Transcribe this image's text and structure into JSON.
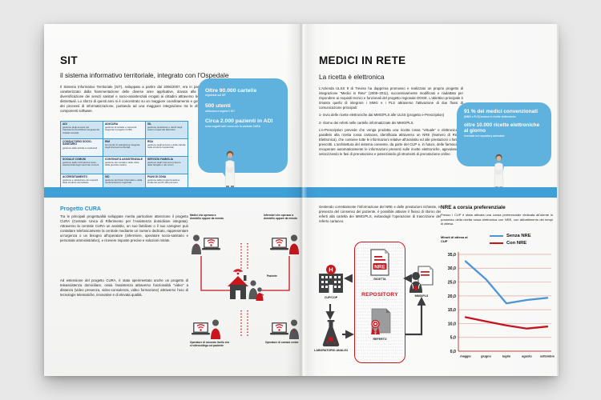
{
  "colors": {
    "band_blue": "#3f9fd7",
    "bubble_blue": "#5fb2dd",
    "accent_red": "#c8161d",
    "dark_gray": "#3f4041",
    "table_border": "#3a97d1",
    "cura_blue": "#2a8fc9"
  },
  "left": {
    "title": "SIT",
    "subtitle": "il sistema informativo territoriale, integrato con l'Ospedale",
    "intro": "Il Sistema Informativo Territoriale (SIT), sviluppato a partire dal 2006/2007, era in passato caratterizzato dalla frammentazione delle diverse aree applicative, dovuta alla forte diversificazione dei servizi sanitari e socio-assistenziali erogati ai cittadini attraverso le sedi distrettuali. Lo sforzo di questi anni si è concentrato su un maggiore coordinamento e governo dei processi di informatizzazione, puntando ad una maggiore integrazione tra le diverse componenti software.",
    "table": {
      "cells": [
        {
          "title": "ADI",
          "desc": "gestione degli accessi per l'assistenza domiciliare integrata dei cittadini assistiti"
        },
        {
          "title": "ADI/CURA",
          "desc": "gestione di cartelle e interventi; supporta il progetto CURA"
        },
        {
          "title": "SIL",
          "desc": "gestione prestazioni e referti degli esami erogati dai laboratori"
        },
        {
          "title": "CONSULTORIO SOCIO-SANITARIO",
          "desc": "gestione delle attività consultoriali"
        },
        {
          "title": "RIM",
          "desc": "strumento di valutazione integrata degli interventi territoriali"
        },
        {
          "title": "RSA",
          "desc": "gestione degli accessi e delle cartelle nelle strutture residenziali"
        },
        {
          "title": "SOCIALE COMUNI",
          "desc": "gestione delle informazioni socio-assistenziali degli utenti dei comuni"
        },
        {
          "title": "CONTINUITÀ ASSISTENZIALE",
          "desc": "gestione dei contatti e delle visite della guardia medica"
        },
        {
          "title": "SERVIZIO FAMIGLIA",
          "desc": "gestione degli interventi a favore delle famiglie e dei minori"
        },
        {
          "title": "ACCREDITAMENTO",
          "desc": "gestione e valutazione dei requisiti delle strutture accreditate"
        },
        {
          "title": "SID",
          "desc": "gestione dei flussi informativi e della rendicontazione regionale"
        },
        {
          "title": "PIANI DI ZONA",
          "desc": "gestione della programmazione locale dei servizi alla persona"
        }
      ]
    },
    "bubble": {
      "stats": [
        {
          "headline": "Oltre 90.000 cartelle",
          "sub": "registrate sul SIT"
        },
        {
          "headline": "500 utenti",
          "sub": "utilizzano a regime il SIT"
        },
        {
          "headline": "Circa 2.000 pazienti in ADI",
          "sub": "sono seguiti tutti i mesi con la centrale CURA"
        }
      ]
    },
    "cura": {
      "title": "Progetto CURA",
      "p1": "Tra le principali progettualità sviluppate merita particolare attenzione il progetto CURA (Centrale Unica di Riferimento per l'Assistenza domiciliare integrata). Attraverso la centrale CURA un assistito, un suo familiare o il suo caregiver può contattare telefonicamente la centrale mediante un numero dedicato, rappresentare un'urgenza o un bisogno all'operatore (infermiere, operatore socio-sanitario e personale amministrativo), e ricevere risposte precise e soluzioni mirate.",
      "p2": "Ad estensione del progetto CURA, è stato sperimentato anche un progetto di teleassistenza domiciliare, ossia l'assistenza attraverso funzionalità “video” a distanza (video presenza, video-consulenza, video formazione) attraverso l'uso di tecnologie telematiche, innovative e di elevata qualità."
    },
    "diagram": {
      "top_left": "Medici che operano a domicilio oppure da remoto",
      "top_right": "Infermieri che operano a domicilio oppure da remoto",
      "center": "Paziente",
      "bottom_left": "Operatore di secondo livello che si videocollega col paziente",
      "bottom_right": "Operatore di contact center"
    }
  },
  "right": {
    "title": "MEDICI IN RETE",
    "subtitle": "La ricetta è elettronica",
    "intro": [
      "L'Azienda ULSS 9 di Treviso ha dapprima promosso e realizzato un proprio progetto di integrazione “Medici in Rete” (2008–2011), successivamente modificato e riadattato per rispondere ai requisiti tecnici e funzionali del progetto regionale DOGE. L'obiettivo principale è rimasto quello di integrare i MMG e i PLS attraverso l'attivazione di due flussi di comunicazione principali:",
      "1- invio delle ricette elettroniche dai MMG/PLS alle ULSS (progetto e-Prescription)",
      "2- ritorno dei referti nelle cartelle informatizzate dei MMG/PLS.",
      "L'e-Prescription prevede che venga prodotta una ricetta rossa “virtuale” e elettronica, in parallelo alla ricetta rossa cartacea, identificata attraverso un NRE (Numero di Ricetta Elettronica), che contiene tutte le informazioni relative all'assistito ed alle prestazioni o farmaci prescritti. L'architettura del sistema consente, da parte del CUP e, in futuro, delle farmacie, di recuperare automaticamente le informazioni presenti sulle ricette elettroniche, agevolando e velocizzando le fasi di prenotazione e potenziando gli strumenti di prenotazione online."
    ],
    "bubble": {
      "stats": [
        {
          "headline": "91 % dei medici convenzionati",
          "sub": "(MMG e PLS) inviano le ricette elettroniche"
        },
        {
          "headline": "oltre 10.000 ricette elettroniche al giorno",
          "sub": "riversate nel repository aziendale"
        }
      ]
    },
    "referti_text": "Gestendo correttamente l'informazione del NRE e delle prestazioni richieste, in presenza del consenso del paziente, è possibile attivare il flusso di ritorno dei referti alla cartella dei MMG/PLS, evitandogli l'operazione di trascrizione del referto cartaceo.",
    "flow": {
      "cup": "CUP/COP",
      "lab": "LABORATORIO ANALISI",
      "ricetta": "RICETTA",
      "repository": "REPOSITORY",
      "referto": "REFERTO",
      "mmg": "MMG/PLS",
      "nre": "NRE"
    },
    "chart_panel": {
      "title": "NRE a corsia preferenziale",
      "text": "Presso i CUP è stata attivata una corsia preferenziale dedicata all'utente in possesso della ricetta rossa elettronica con NRE, con abbattimento dei tempi di attesa.",
      "ylabel": "Minuti di attesa al CUP"
    }
  },
  "chart_data": {
    "type": "line",
    "title": "NRE a corsia preferenziale",
    "ylabel": "Minuti di attesa al CUP",
    "categories": [
      "maggio",
      "giugno",
      "luglio",
      "agosto",
      "settembre"
    ],
    "series": [
      {
        "name": "Senza NRE",
        "color": "#4f94d4",
        "values": [
          32.5,
          26.0,
          17.3,
          18.5,
          19.3
        ]
      },
      {
        "name": "Con NRE",
        "color": "#c41420",
        "values": [
          12.3,
          10.8,
          9.3,
          8.2,
          8.9
        ]
      }
    ],
    "ylim": [
      0,
      35
    ],
    "ytick_step": 5,
    "grid": true,
    "legend_position": "top-right"
  }
}
